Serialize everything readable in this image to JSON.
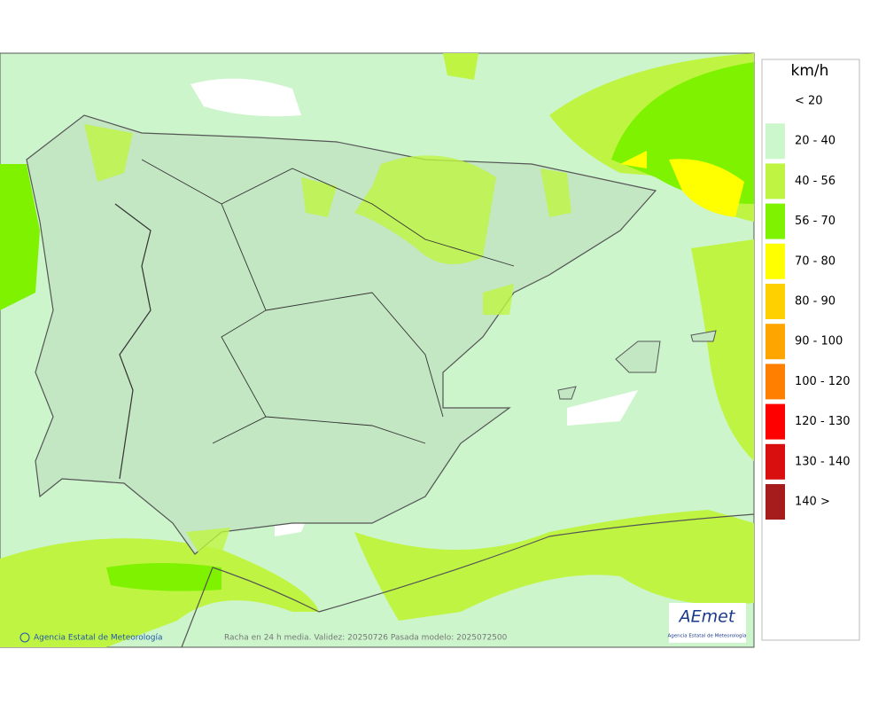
{
  "map": {
    "copyright": "Agencia Estatal de Meteorología",
    "caption": "Racha en 24 h media. Validez: 20250726 Pasada modelo: 2025072500",
    "logo": {
      "mark": "AEmet",
      "name": "Agencia Estatal de Meteorología"
    }
  },
  "legend": {
    "title": "km/h",
    "items": [
      {
        "label": "< 20",
        "color": "#ffffff"
      },
      {
        "label": "20 - 40",
        "color": "#ccf7cc"
      },
      {
        "label": "40 - 56",
        "color": "#bff542"
      },
      {
        "label": "56 - 70",
        "color": "#7ff200"
      },
      {
        "label": "70 - 80",
        "color": "#ffff00"
      },
      {
        "label": "80 - 90",
        "color": "#ffd000"
      },
      {
        "label": "90 - 100",
        "color": "#ffa500"
      },
      {
        "label": "100 - 120",
        "color": "#ff8000"
      },
      {
        "label": "120 - 130",
        "color": "#ff0000"
      },
      {
        "label": "130 - 140",
        "color": "#d90f0f"
      },
      {
        "label": "140 >",
        "color": "#a61b1b"
      }
    ]
  }
}
